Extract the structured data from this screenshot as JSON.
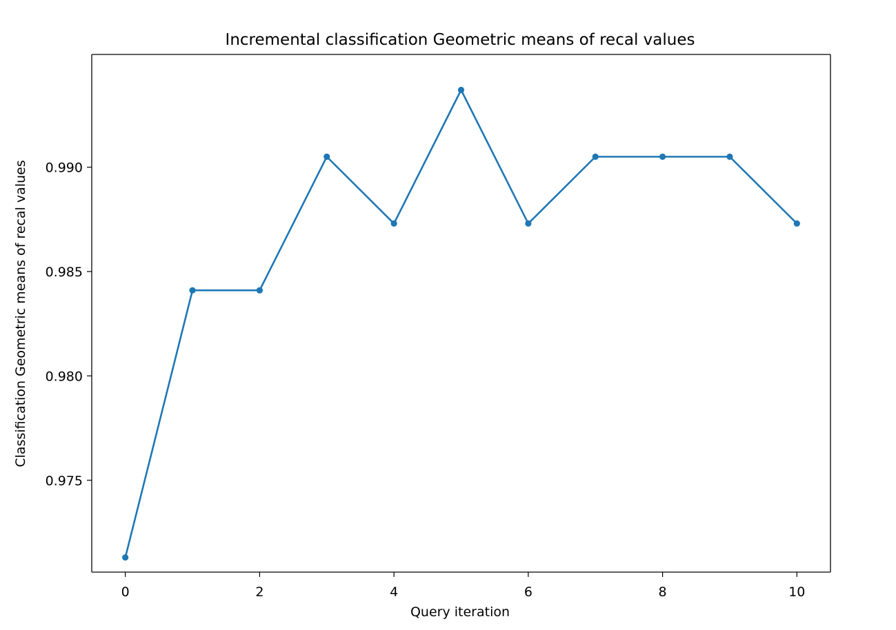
{
  "chart_data": {
    "type": "line",
    "title": "Incremental classification Geometric means of recal values",
    "xlabel": "Query iteration",
    "ylabel": "Classification Geometric means of recal values",
    "x": [
      0,
      1,
      2,
      3,
      4,
      5,
      6,
      7,
      8,
      9,
      10
    ],
    "series": [
      {
        "values": [
          0.9713,
          0.9841,
          0.9841,
          0.9905,
          0.9873,
          0.9937,
          0.9873,
          0.9905,
          0.9905,
          0.9905,
          0.9873
        ]
      }
    ],
    "xlim": [
      -0.5,
      10.5
    ],
    "ylim": [
      0.9706,
      0.9954
    ],
    "xticks": [
      0,
      2,
      4,
      6,
      8,
      10
    ],
    "xtick_labels": [
      "0",
      "2",
      "4",
      "6",
      "8",
      "10"
    ],
    "yticks": [
      0.975,
      0.98,
      0.985,
      0.99
    ],
    "ytick_labels": [
      "0.975",
      "0.980",
      "0.985",
      "0.990"
    ],
    "grid": false,
    "legend": "none",
    "line_color": "#1f77b4",
    "marker": "circle"
  }
}
